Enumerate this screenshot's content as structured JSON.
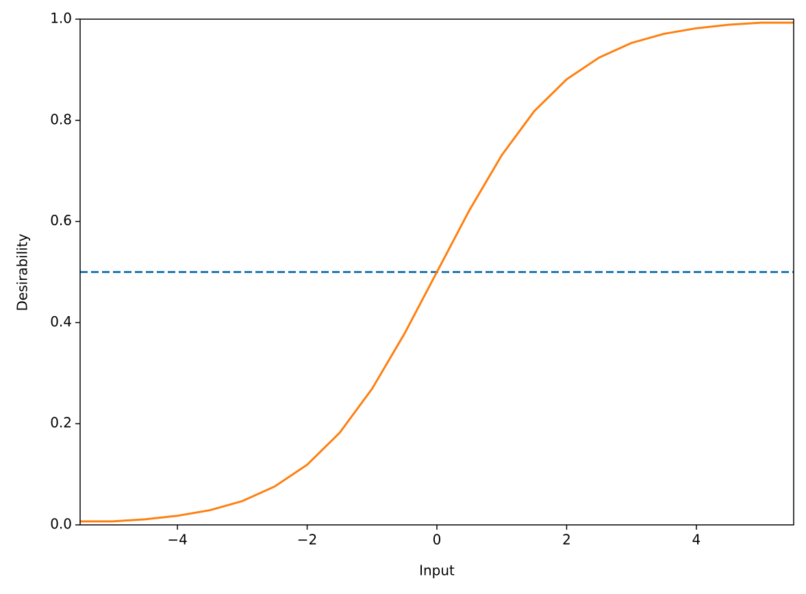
{
  "chart_data": {
    "type": "line",
    "x_label": "Input",
    "y_label": "Desirability",
    "x": [
      -5.5,
      -5,
      -4.5,
      -4,
      -3.5,
      -3,
      -2.5,
      -2,
      -1.5,
      -1,
      -0.5,
      0,
      0.5,
      1,
      1.5,
      2,
      2.5,
      3,
      3.5,
      4,
      4.5,
      5,
      5.5
    ],
    "series": [
      {
        "color": "#ff7f0e",
        "values": [
          0.007,
          0.007,
          0.011,
          0.018,
          0.029,
          0.047,
          0.076,
          0.119,
          0.182,
          0.269,
          0.378,
          0.5,
          0.622,
          0.731,
          0.818,
          0.881,
          0.924,
          0.953,
          0.971,
          0.982,
          0.989,
          0.993,
          0.993
        ]
      }
    ],
    "hline": {
      "value": 0.5,
      "color": "#1f77b4",
      "style": "dashed"
    },
    "xlim": [
      -5.5,
      5.5
    ],
    "xticks": [
      {
        "value": -4,
        "label": "−4"
      },
      {
        "value": -2,
        "label": "−2"
      },
      0,
      2,
      4
    ],
    "ylim": [
      0,
      1
    ],
    "yticks": [
      {
        "value": 0,
        "label": "0.0"
      },
      0.2,
      0.4,
      0.6,
      0.8,
      {
        "value": 1,
        "label": "1.0"
      }
    ],
    "grid": false
  }
}
